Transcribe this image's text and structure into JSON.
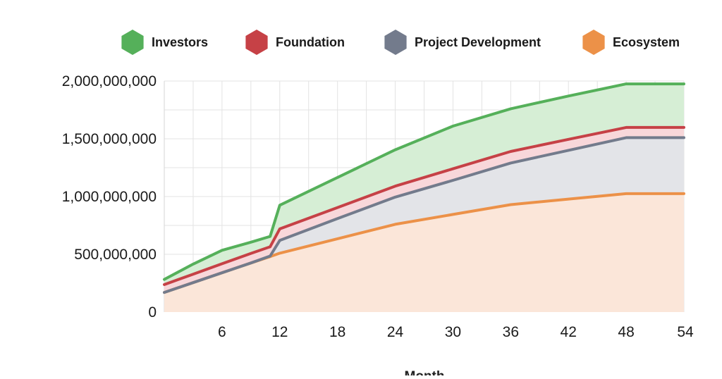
{
  "chart_data": {
    "type": "area",
    "stacked": true,
    "title": "",
    "xlabel": "Month",
    "ylabel": "",
    "xlim": [
      0,
      54
    ],
    "ylim": [
      0,
      2000000000
    ],
    "x_ticks": [
      6,
      12,
      18,
      24,
      30,
      36,
      42,
      48,
      54
    ],
    "y_ticks": [
      0,
      500000000,
      1000000000,
      1500000000,
      2000000000
    ],
    "y_tick_labels": [
      "0",
      "500,000,000",
      "1,000,000,000",
      "1,500,000,000",
      "2,000,000,000"
    ],
    "grid": true,
    "legend_position": "top",
    "series": [
      {
        "name": "Ecosystem",
        "color": "#EC9148",
        "fill": "#FBE6D9",
        "points": [
          [
            0,
            170000000
          ],
          [
            3,
            255000000
          ],
          [
            6,
            340000000
          ],
          [
            9,
            425000000
          ],
          [
            11,
            480000000
          ],
          [
            12,
            510000000
          ],
          [
            18,
            635000000
          ],
          [
            24,
            760000000
          ],
          [
            30,
            845000000
          ],
          [
            36,
            930000000
          ],
          [
            42,
            978000000
          ],
          [
            48,
            1025000000
          ],
          [
            54,
            1025000000
          ]
        ]
      },
      {
        "name": "Project Development",
        "color": "#737B8C",
        "fill": "#E3E4E8",
        "points": [
          [
            0,
            170000000
          ],
          [
            3,
            255000000
          ],
          [
            6,
            340000000
          ],
          [
            9,
            425000000
          ],
          [
            11,
            485000000
          ],
          [
            12,
            620000000
          ],
          [
            18,
            810000000
          ],
          [
            24,
            995000000
          ],
          [
            30,
            1140000000
          ],
          [
            36,
            1290000000
          ],
          [
            42,
            1400000000
          ],
          [
            48,
            1510000000
          ],
          [
            54,
            1510000000
          ]
        ]
      },
      {
        "name": "Foundation",
        "color": "#C64146",
        "fill": "#F8D7DA",
        "points": [
          [
            0,
            238000000
          ],
          [
            3,
            328000000
          ],
          [
            6,
            418000000
          ],
          [
            9,
            508000000
          ],
          [
            11,
            565000000
          ],
          [
            12,
            720000000
          ],
          [
            18,
            905000000
          ],
          [
            24,
            1090000000
          ],
          [
            30,
            1240000000
          ],
          [
            36,
            1390000000
          ],
          [
            42,
            1495000000
          ],
          [
            48,
            1598000000
          ],
          [
            54,
            1598000000
          ]
        ]
      },
      {
        "name": "Investors",
        "color": "#55B05A",
        "fill": "#D6EED5",
        "points": [
          [
            0,
            283000000
          ],
          [
            3,
            415000000
          ],
          [
            6,
            535000000
          ],
          [
            9,
            605000000
          ],
          [
            11,
            655000000
          ],
          [
            12,
            925000000
          ],
          [
            18,
            1165000000
          ],
          [
            24,
            1405000000
          ],
          [
            30,
            1610000000
          ],
          [
            36,
            1760000000
          ],
          [
            42,
            1870000000
          ],
          [
            48,
            1975000000
          ],
          [
            54,
            1975000000
          ]
        ]
      }
    ],
    "legend": [
      {
        "label": "Investors",
        "color": "#55B05A"
      },
      {
        "label": "Foundation",
        "color": "#C64146"
      },
      {
        "label": "Project Development",
        "color": "#737B8C"
      },
      {
        "label": "Ecosystem",
        "color": "#EC9148"
      }
    ]
  }
}
